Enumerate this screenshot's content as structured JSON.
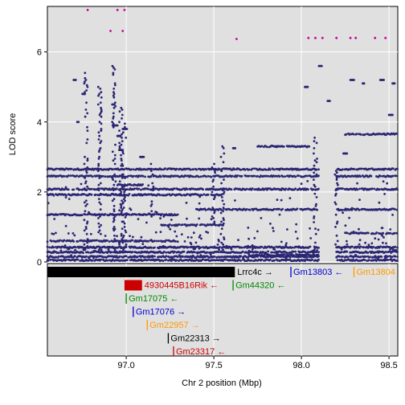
{
  "chart_data": {
    "type": "scatter",
    "xlabel": "Chr 2 position (Mbp)",
    "ylabel": "LOD score",
    "xlim": [
      96.55,
      98.55
    ],
    "ylim": [
      0,
      7.3
    ],
    "x_ticks": [
      {
        "value": 97.0,
        "label": "97.0"
      },
      {
        "value": 97.5,
        "label": "97.5"
      },
      {
        "value": 98.0,
        "label": "98.0"
      },
      {
        "value": 98.5,
        "label": "98.5"
      }
    ],
    "y_ticks": [
      {
        "value": 0,
        "label": "0"
      },
      {
        "value": 2,
        "label": "2"
      },
      {
        "value": 4,
        "label": "4"
      },
      {
        "value": 6,
        "label": "6"
      }
    ],
    "grid": true,
    "point_color": "#2b2673",
    "highlight_color": "#cc0099",
    "panel_background": "#e0e0e0",
    "bands": [
      {
        "x0": 96.55,
        "x1": 98.55,
        "y": 2.65
      },
      {
        "x0": 96.55,
        "x1": 98.55,
        "y": 2.45
      },
      {
        "x0": 96.55,
        "x1": 98.55,
        "y": 2.08
      },
      {
        "x0": 96.55,
        "x1": 97.55,
        "y": 1.92
      },
      {
        "x0": 97.4,
        "x1": 98.55,
        "y": 1.5
      },
      {
        "x0": 96.55,
        "x1": 97.3,
        "y": 1.35
      },
      {
        "x0": 97.2,
        "x1": 97.55,
        "y": 1.05
      },
      {
        "x0": 98.25,
        "x1": 98.55,
        "y": 0.82
      },
      {
        "x0": 96.55,
        "x1": 98.55,
        "y": 0.42
      },
      {
        "x0": 96.55,
        "x1": 98.55,
        "y": 0.28
      },
      {
        "x0": 96.55,
        "x1": 98.55,
        "y": 0.15
      },
      {
        "x0": 96.55,
        "x1": 98.55,
        "y": 0.05
      },
      {
        "x0": 96.55,
        "x1": 97.3,
        "y": 0.6
      },
      {
        "x0": 97.7,
        "x1": 98.1,
        "y": 0.2
      },
      {
        "x0": 98.25,
        "x1": 98.55,
        "y": 3.65
      },
      {
        "x0": 97.75,
        "x1": 98.05,
        "y": 3.3
      },
      {
        "x0": 96.95,
        "x1": 97.1,
        "y": 2.2
      }
    ],
    "gaps": [
      [
        98.1,
        98.2
      ]
    ],
    "columns": [
      {
        "x": 96.77,
        "y0": 0.3,
        "y1": 5.4
      },
      {
        "x": 96.85,
        "y0": 0.3,
        "y1": 5.0
      },
      {
        "x": 96.93,
        "y0": 0.3,
        "y1": 5.6
      },
      {
        "x": 96.97,
        "y0": 0.3,
        "y1": 4.4
      },
      {
        "x": 96.99,
        "y0": 0.3,
        "y1": 4.0
      },
      {
        "x": 97.15,
        "y0": 1.3,
        "y1": 2.8
      },
      {
        "x": 97.5,
        "y0": 1.0,
        "y1": 2.8
      },
      {
        "x": 97.55,
        "y0": 0.3,
        "y1": 3.3
      },
      {
        "x": 98.08,
        "y0": 0.2,
        "y1": 3.6
      },
      {
        "x": 98.2,
        "y0": 0.5,
        "y1": 2.6
      }
    ],
    "peaks": [
      {
        "x": 96.78,
        "y": 7.2
      },
      {
        "x": 96.95,
        "y": 7.2
      },
      {
        "x": 96.99,
        "y": 7.2
      },
      {
        "x": 96.98,
        "y": 6.6
      },
      {
        "x": 96.91,
        "y": 6.6
      },
      {
        "x": 97.63,
        "y": 6.37
      },
      {
        "x": 98.04,
        "y": 6.4
      },
      {
        "x": 98.08,
        "y": 6.4
      },
      {
        "x": 98.12,
        "y": 6.4
      },
      {
        "x": 98.2,
        "y": 6.4
      },
      {
        "x": 98.28,
        "y": 6.4
      },
      {
        "x": 98.31,
        "y": 6.4
      },
      {
        "x": 98.42,
        "y": 6.4
      },
      {
        "x": 98.48,
        "y": 6.4
      }
    ],
    "upper_points": [
      {
        "x": 96.7,
        "y": 5.2
      },
      {
        "x": 96.75,
        "y": 4.8
      },
      {
        "x": 96.92,
        "y": 4.5
      },
      {
        "x": 96.93,
        "y": 3.9
      },
      {
        "x": 96.95,
        "y": 3.6
      },
      {
        "x": 96.96,
        "y": 3.2
      },
      {
        "x": 96.98,
        "y": 3.8
      },
      {
        "x": 97.61,
        "y": 3.25
      },
      {
        "x": 97.85,
        "y": 3.3
      },
      {
        "x": 98.1,
        "y": 5.6
      },
      {
        "x": 98.28,
        "y": 5.2
      },
      {
        "x": 98.35,
        "y": 5.1
      },
      {
        "x": 98.45,
        "y": 5.2
      },
      {
        "x": 98.52,
        "y": 5.1
      },
      {
        "x": 98.02,
        "y": 5.0
      },
      {
        "x": 98.15,
        "y": 4.6
      },
      {
        "x": 98.5,
        "y": 4.2
      },
      {
        "x": 96.72,
        "y": 4.0
      },
      {
        "x": 98.24,
        "y": 3.1
      },
      {
        "x": 97.08,
        "y": 3.0
      }
    ],
    "genes": [
      {
        "label": "Lrrc4c",
        "color": "#000000",
        "x_start": 96.55,
        "x_end": 97.62,
        "strand": "+",
        "row": 0,
        "label_side": "right",
        "box": true
      },
      {
        "label": "Gm13803",
        "color": "#0000cc",
        "x_start": 97.94,
        "x_end": 97.94,
        "strand": "-",
        "row": 0,
        "label_side": "right",
        "box": false
      },
      {
        "label": "Gm13804",
        "color": "#ff9900",
        "x_start": 98.3,
        "x_end": 98.3,
        "strand": "-",
        "row": 0,
        "label_side": "right",
        "box": false
      },
      {
        "label": "4930445B16Rik",
        "color": "#cc0000",
        "x_start": 96.99,
        "x_end": 97.09,
        "strand": "-",
        "row": 1,
        "label_side": "right",
        "box": true
      },
      {
        "label": "Gm44320",
        "color": "#008800",
        "x_start": 97.61,
        "x_end": 97.61,
        "strand": "-",
        "row": 1,
        "label_side": "right",
        "box": false
      },
      {
        "label": "Gm17075",
        "color": "#008800",
        "x_start": 97.0,
        "x_end": 97.0,
        "strand": "-",
        "row": 2,
        "label_side": "right",
        "box": false
      },
      {
        "label": "Gm17076",
        "color": "#0000cc",
        "x_start": 97.04,
        "x_end": 97.04,
        "strand": "+",
        "row": 3,
        "label_side": "right",
        "box": false
      },
      {
        "label": "Gm22957",
        "color": "#ff9900",
        "x_start": 97.12,
        "x_end": 97.12,
        "strand": "+",
        "row": 4,
        "label_side": "right",
        "box": false
      },
      {
        "label": "Gm22313",
        "color": "#000000",
        "x_start": 97.24,
        "x_end": 97.24,
        "strand": "+",
        "row": 5,
        "label_side": "right",
        "box": false
      },
      {
        "label": "Gm23317",
        "color": "#cc0000",
        "x_start": 97.27,
        "x_end": 97.27,
        "strand": "-",
        "row": 6,
        "label_side": "right",
        "box": false
      }
    ]
  }
}
